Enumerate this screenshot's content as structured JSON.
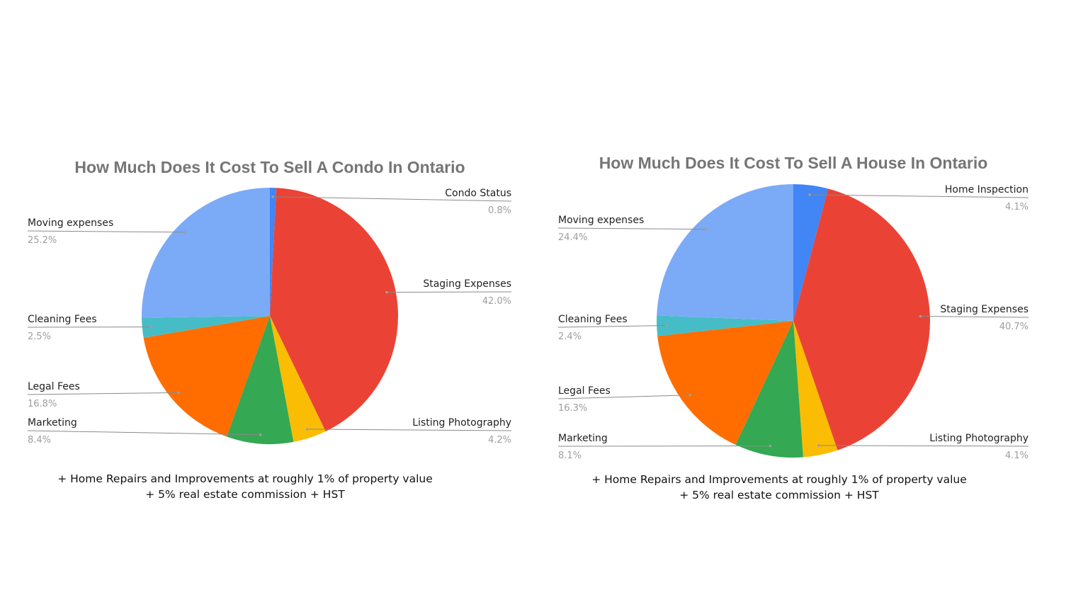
{
  "chart_data": [
    {
      "type": "pie",
      "title": "How Much Does It Cost To Sell A Condo In Ontario",
      "slices": [
        {
          "label": "Condo Status",
          "value": 0.8,
          "pct_label": "0.8%",
          "color": "#4285f4"
        },
        {
          "label": "Staging Expenses",
          "value": 42.0,
          "pct_label": "42.0%",
          "color": "#ea4335"
        },
        {
          "label": "Listing Photography",
          "value": 4.2,
          "pct_label": "4.2%",
          "color": "#fbbc04"
        },
        {
          "label": "Marketing",
          "value": 8.4,
          "pct_label": "8.4%",
          "color": "#34a853"
        },
        {
          "label": "Legal Fees",
          "value": 16.8,
          "pct_label": "16.8%",
          "color": "#ff6d01"
        },
        {
          "label": "Cleaning Fees",
          "value": 2.5,
          "pct_label": "2.5%",
          "color": "#46bdc6"
        },
        {
          "label": "Moving expenses",
          "value": 25.2,
          "pct_label": "25.2%",
          "color": "#7baaf7"
        }
      ],
      "notes": [
        "+ Home Repairs and Improvements at roughly 1% of property value",
        "+ 5% real estate commission + HST"
      ]
    },
    {
      "type": "pie",
      "title": "How Much Does It Cost To Sell A House In Ontario",
      "slices": [
        {
          "label": "Home Inspection",
          "value": 4.1,
          "pct_label": "4.1%",
          "color": "#4285f4"
        },
        {
          "label": "Staging Expenses",
          "value": 40.7,
          "pct_label": "40.7%",
          "color": "#ea4335"
        },
        {
          "label": "Listing Photography",
          "value": 4.1,
          "pct_label": "4.1%",
          "color": "#fbbc04"
        },
        {
          "label": "Marketing",
          "value": 8.1,
          "pct_label": "8.1%",
          "color": "#34a853"
        },
        {
          "label": "Legal Fees",
          "value": 16.3,
          "pct_label": "16.3%",
          "color": "#ff6d01"
        },
        {
          "label": "Cleaning Fees",
          "value": 2.4,
          "pct_label": "2.4%",
          "color": "#46bdc6"
        },
        {
          "label": "Moving expenses",
          "value": 24.4,
          "pct_label": "24.4%",
          "color": "#7baaf7"
        }
      ],
      "notes": [
        "+ Home Repairs and Improvements at roughly 1% of property value",
        "+ 5% real estate commission + HST"
      ]
    }
  ]
}
